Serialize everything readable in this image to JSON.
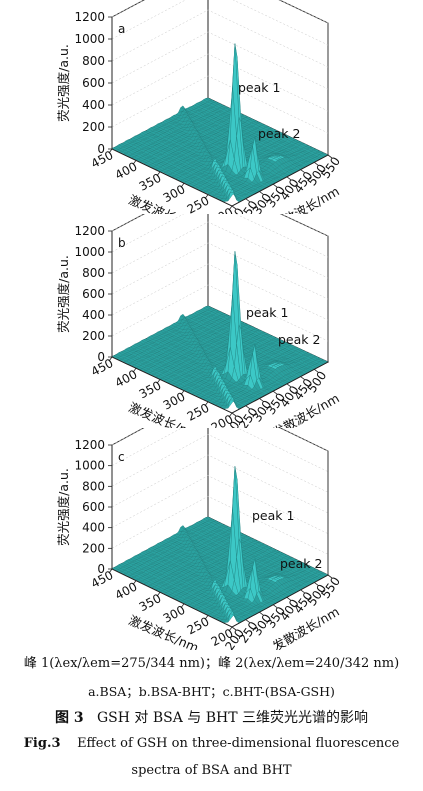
{
  "chart_data": [
    {
      "type": "surface3d",
      "panel_label": "a",
      "zlabel": "荧光强度/a.u.",
      "xlabel": "激发波长/nm",
      "ylabel": "发散波长/nm",
      "zticks": [
        0,
        200,
        400,
        600,
        800,
        1000,
        1200
      ],
      "xticks": [
        450,
        400,
        350,
        300,
        250,
        200
      ],
      "yticks": [
        200,
        250,
        300,
        350,
        400,
        450,
        500,
        550
      ],
      "zlim": [
        0,
        1200
      ],
      "peaks": [
        {
          "label": "peak 1",
          "ex": 275,
          "em": 344,
          "intensity": 1150
        },
        {
          "label": "peak 2",
          "ex": 240,
          "em": 342,
          "intensity": 100
        }
      ]
    },
    {
      "type": "surface3d",
      "panel_label": "b",
      "zlabel": "荧光强度/a.u.",
      "xlabel": "激发波长/nm",
      "ylabel": "发散波长/nm",
      "zticks": [
        0,
        200,
        400,
        600,
        800,
        1000,
        1200
      ],
      "xticks": [
        450,
        400,
        350,
        300,
        250,
        200
      ],
      "yticks": [
        200,
        250,
        300,
        350,
        400,
        450,
        500
      ],
      "zlim": [
        0,
        1200
      ],
      "peaks": [
        {
          "label": "peak 1",
          "ex": 275,
          "em": 344,
          "intensity": 1200
        },
        {
          "label": "peak 2",
          "ex": 240,
          "em": 342,
          "intensity": 100
        }
      ]
    },
    {
      "type": "surface3d",
      "panel_label": "c",
      "zlabel": "荧光强度/a.u.",
      "xlabel": "激发波长/nm",
      "ylabel": "发散波长/nm",
      "zticks": [
        0,
        200,
        400,
        600,
        800,
        1000,
        1200
      ],
      "xticks": [
        450,
        400,
        350,
        300,
        250,
        200
      ],
      "yticks": [
        200,
        250,
        300,
        350,
        400,
        450,
        500,
        550
      ],
      "zlim": [
        0,
        1200
      ],
      "peaks": [
        {
          "label": "peak 1",
          "ex": 275,
          "em": 344,
          "intensity": 1200
        },
        {
          "label": "peak 2",
          "ex": 240,
          "em": 342,
          "intensity": 100
        }
      ]
    }
  ],
  "colors": {
    "surface": "#3cc8c6",
    "surface_line": "#1f7f7e",
    "surface_shadow": "#2aa19f"
  },
  "captions": {
    "peaks": "峰 1(λex/λem=275/344 nm)；峰 2(λex/λem=240/342 nm)",
    "panels": "a.BSA；b.BSA-BHT；c.BHT-(BSA-GSH)",
    "zh_fig_no": "图 3",
    "zh_title": "GSH 对 BSA 与 BHT 三维荧光光谱的影响",
    "en_fig_no": "Fig.3",
    "en_title_line1": "Effect of GSH on three-dimensional fluorescence",
    "en_title_line2": "spectra of BSA and BHT"
  }
}
